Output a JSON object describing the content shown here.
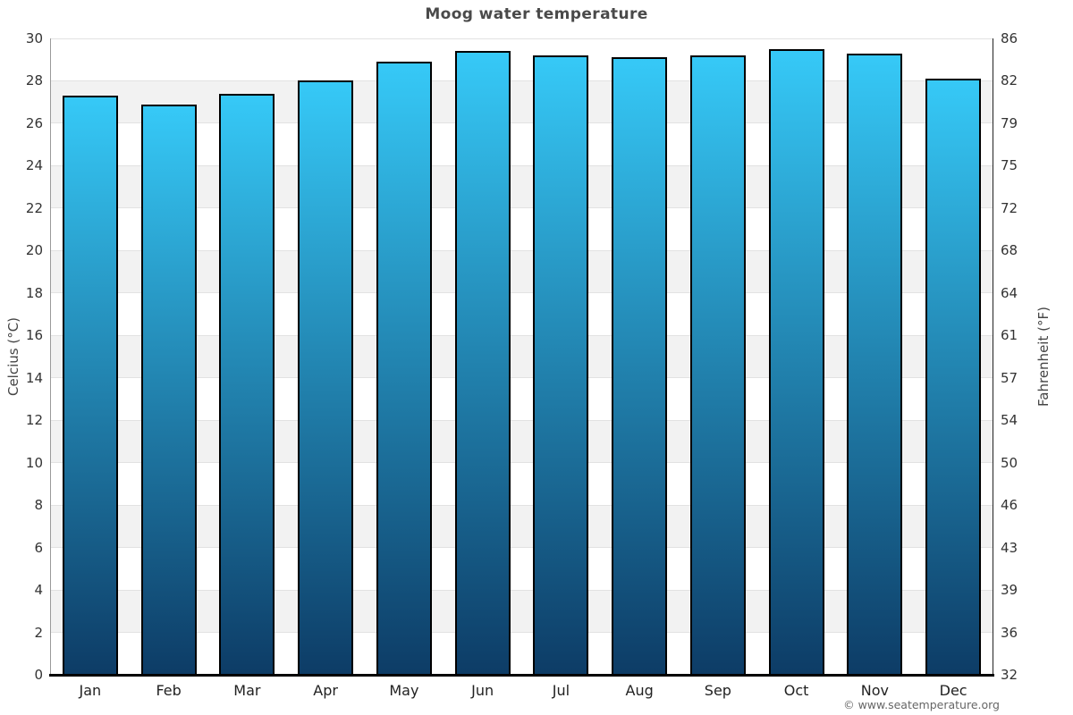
{
  "title": "Moog water temperature",
  "footer_credit": "© www.seatemperature.org",
  "axes": {
    "left_title": "Celcius (°C)",
    "right_title": "Fahrenheit (°F)"
  },
  "chart_data": {
    "type": "bar",
    "title": "Moog water temperature",
    "categories": [
      "Jan",
      "Feb",
      "Mar",
      "Apr",
      "May",
      "Jun",
      "Jul",
      "Aug",
      "Sep",
      "Oct",
      "Nov",
      "Dec"
    ],
    "values": [
      27.3,
      26.9,
      27.4,
      28.0,
      28.9,
      29.4,
      29.2,
      29.1,
      29.2,
      29.5,
      29.3,
      28.1
    ],
    "unit": "°C",
    "ylabel_left": "Celcius (°C)",
    "ylabel_right": "Fahrenheit (°F)",
    "ylim_c": [
      0,
      30
    ],
    "yticks_c": [
      0,
      2,
      4,
      6,
      8,
      10,
      12,
      14,
      16,
      18,
      20,
      22,
      24,
      26,
      28,
      30
    ],
    "yticks_f": [
      32,
      36,
      39,
      43,
      46,
      50,
      54,
      57,
      61,
      64,
      68,
      72,
      75,
      79,
      82,
      86
    ],
    "legend": "none",
    "grid": "alternating-bands",
    "colors": {
      "bar_gradient_top": "#36c9f7",
      "bar_gradient_bottom": "#0d3c66",
      "bar_border": "#000000",
      "band_gray": "#f2f2f2",
      "band_white": "#ffffff",
      "gridline": "#e2e2e2",
      "axis_bottom": "#000000",
      "axis_left": "#9a9a9a",
      "axis_right": "#222222",
      "title_color": "#4a4a4a",
      "tick_label": "#333333",
      "credit_color": "#666666"
    }
  }
}
